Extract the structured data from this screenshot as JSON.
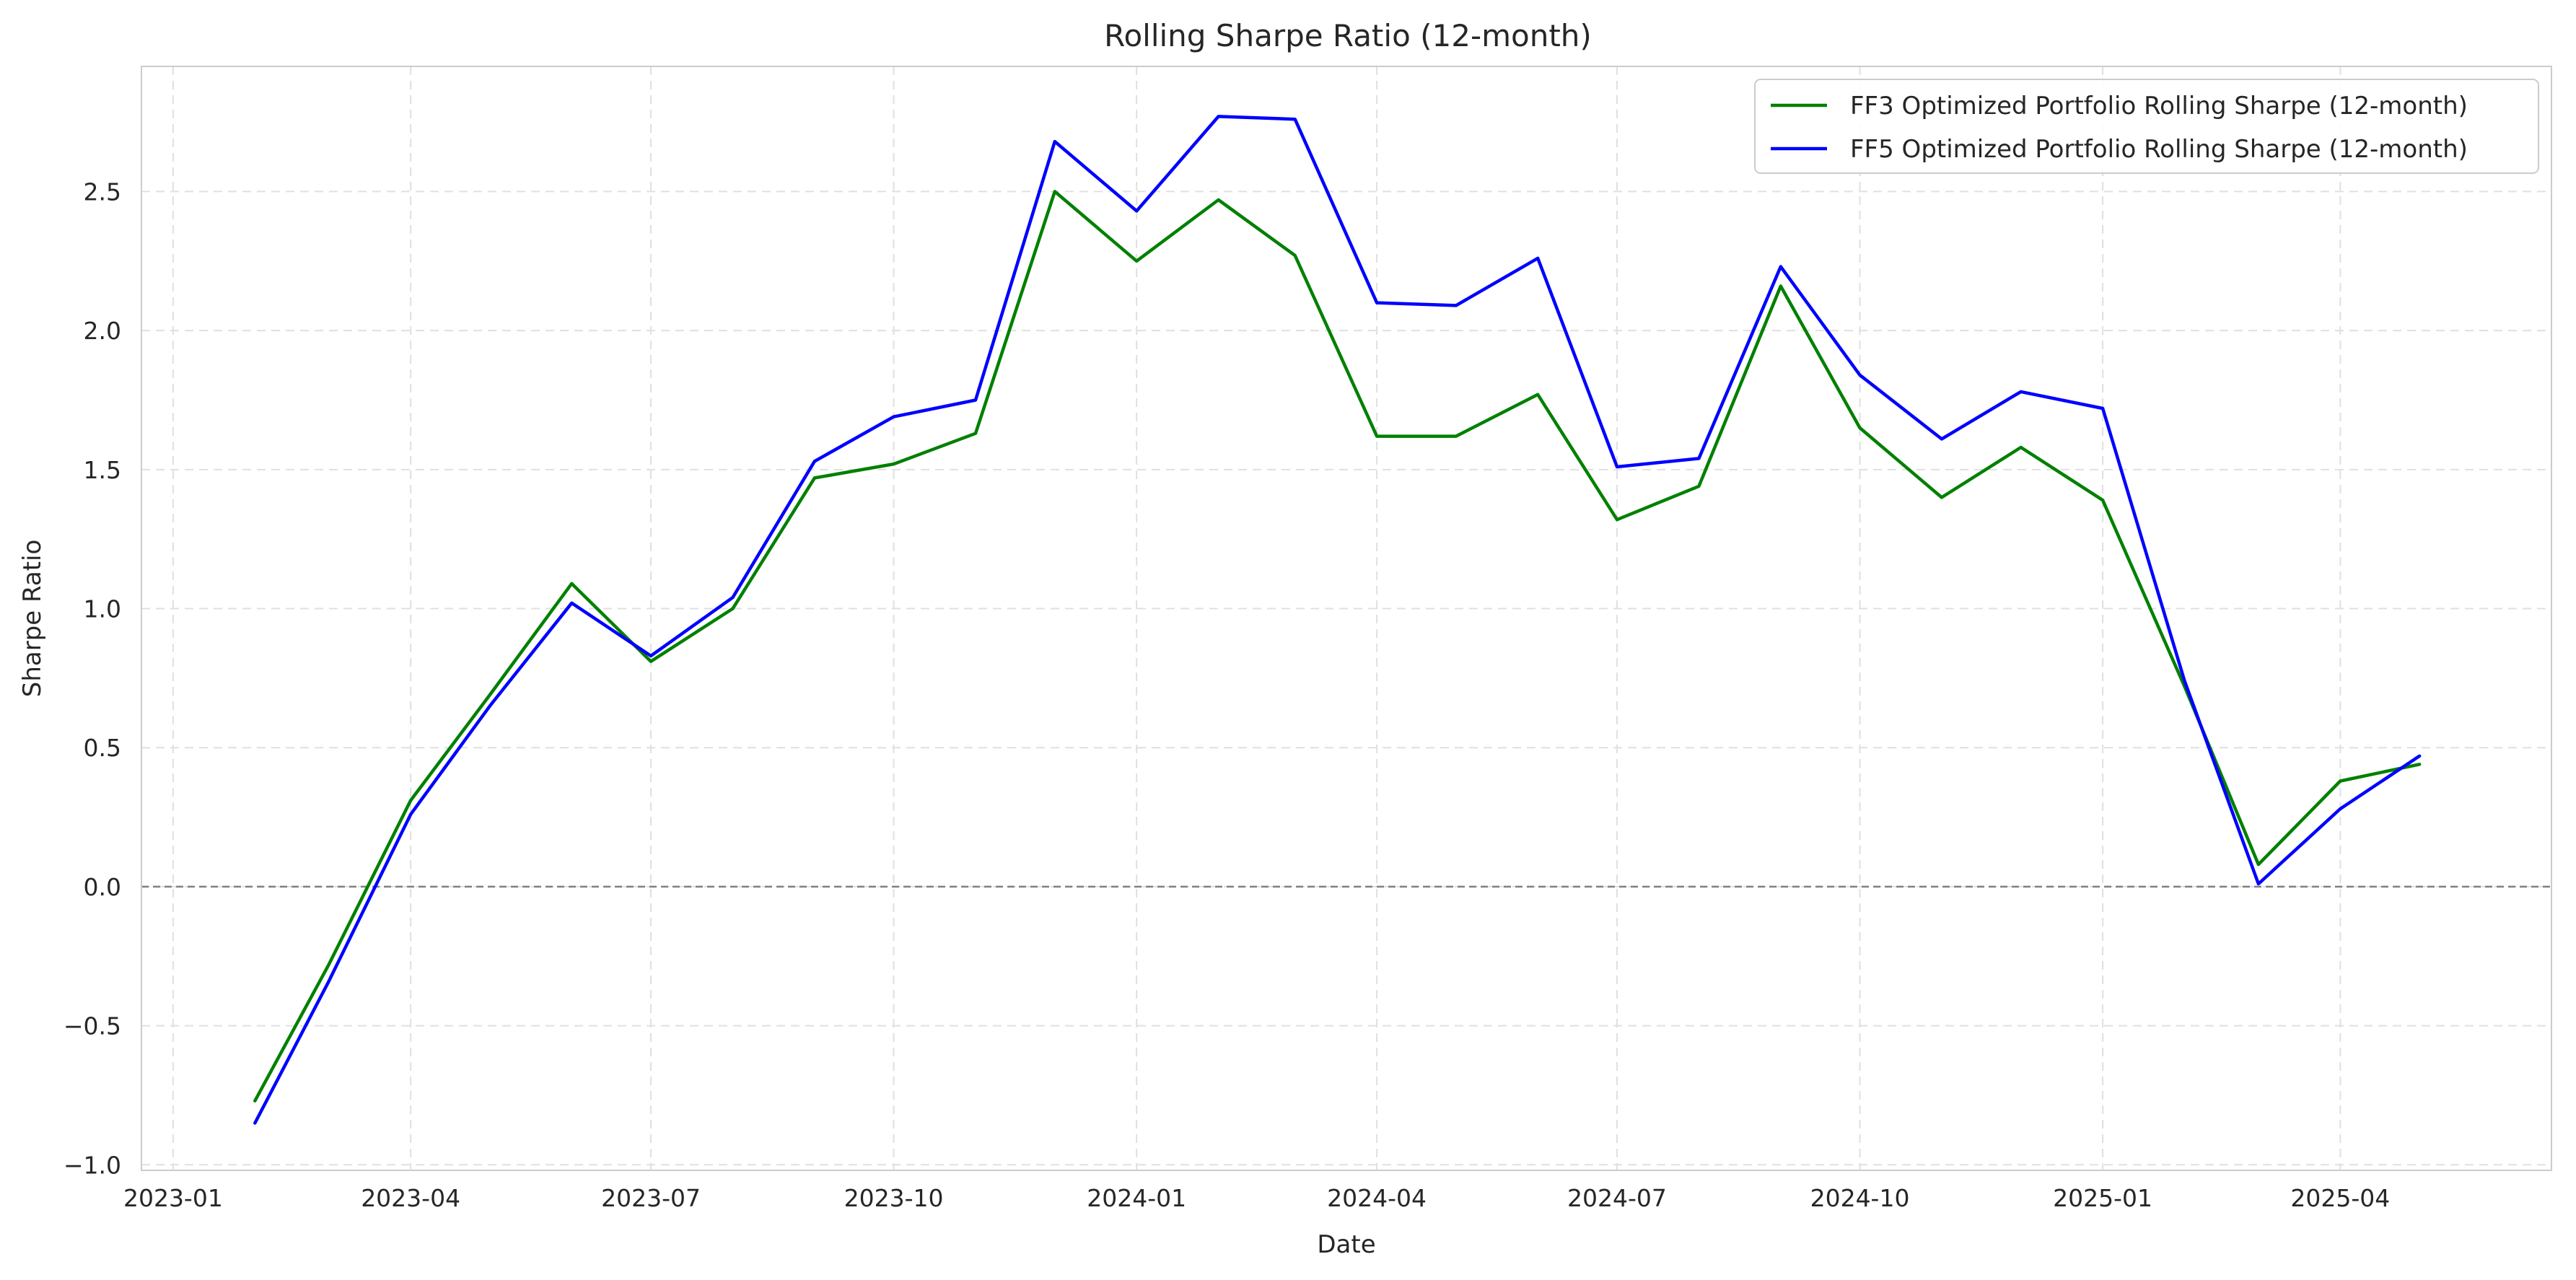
{
  "chart_data": {
    "type": "line",
    "title": "Rolling Sharpe Ratio (12-month)",
    "xlabel": "Date",
    "ylabel": "Sharpe Ratio",
    "xlim": [
      "2022-12-20",
      "2025-06-20"
    ],
    "ylim": [
      -1.02,
      2.95
    ],
    "x_ticks": [
      "2023-01-01",
      "2023-04-01",
      "2023-07-01",
      "2023-10-01",
      "2024-01-01",
      "2024-04-01",
      "2024-07-01",
      "2024-10-01",
      "2025-01-01",
      "2025-04-01"
    ],
    "x_tick_labels": [
      "2023-01",
      "2023-04",
      "2023-07",
      "2023-10",
      "2024-01",
      "2024-04",
      "2024-07",
      "2024-10",
      "2025-01",
      "2025-04"
    ],
    "y_ticks": [
      -1.0,
      -0.5,
      0.0,
      0.5,
      1.0,
      1.5,
      2.0,
      2.5
    ],
    "y_tick_labels": [
      "−1.0",
      "−0.5",
      "0.0",
      "0.5",
      "1.0",
      "1.5",
      "2.0",
      "2.5"
    ],
    "grid": true,
    "reference_line": {
      "y": 0.0,
      "style": "dashed",
      "color": "#808080"
    },
    "legend_position": "upper-right",
    "x": [
      "2023-02-01",
      "2023-03-01",
      "2023-04-01",
      "2023-05-01",
      "2023-06-01",
      "2023-07-01",
      "2023-08-01",
      "2023-09-01",
      "2023-10-01",
      "2023-11-01",
      "2023-12-01",
      "2024-01-01",
      "2024-02-01",
      "2024-03-01",
      "2024-04-01",
      "2024-05-01",
      "2024-06-01",
      "2024-07-01",
      "2024-08-01",
      "2024-09-01",
      "2024-10-01",
      "2024-11-01",
      "2024-12-01",
      "2025-01-01",
      "2025-02-01",
      "2025-03-01",
      "2025-04-01",
      "2025-05-01"
    ],
    "series": [
      {
        "name": "FF3 Optimized Portfolio Rolling Sharpe (12-month)",
        "color": "#008000",
        "values": [
          -0.77,
          -0.28,
          0.31,
          0.69,
          1.09,
          0.81,
          1.0,
          1.47,
          1.52,
          1.63,
          2.5,
          2.25,
          2.47,
          2.27,
          1.62,
          1.62,
          1.77,
          1.32,
          1.44,
          2.16,
          1.65,
          1.4,
          1.58,
          1.39,
          0.72,
          0.08,
          0.38,
          0.44
        ]
      },
      {
        "name": "FF5 Optimized Portfolio Rolling Sharpe (12-month)",
        "color": "#0000ff",
        "values": [
          -0.85,
          -0.34,
          0.26,
          0.65,
          1.02,
          0.83,
          1.04,
          1.53,
          1.69,
          1.75,
          2.68,
          2.43,
          2.77,
          2.76,
          2.1,
          2.09,
          2.26,
          1.51,
          1.54,
          2.23,
          1.84,
          1.61,
          1.78,
          1.72,
          0.74,
          0.01,
          0.28,
          0.47
        ]
      }
    ]
  }
}
